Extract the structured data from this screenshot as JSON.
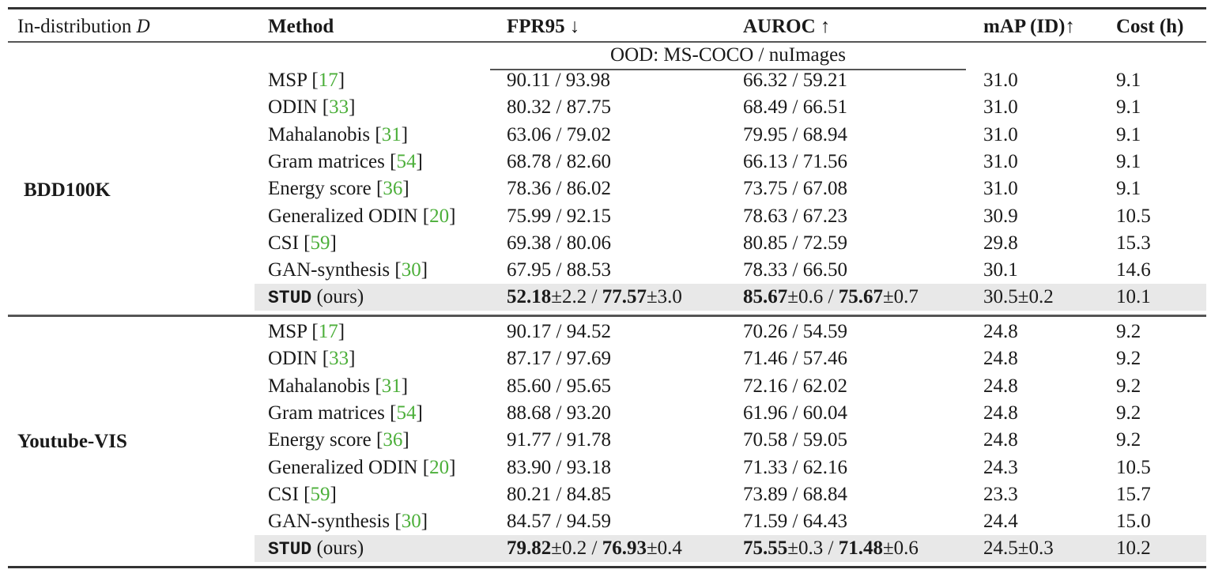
{
  "table": {
    "headers": {
      "dataset": "In-distribution",
      "dataset_symbol": "D",
      "method": "Method",
      "fpr95": "FPR95 ↓",
      "auroc": "AUROC ↑",
      "map": "mAP (ID)↑",
      "cost": "Cost (h)"
    },
    "subheader": "OOD: MS-COCO / nuImages",
    "groups": [
      {
        "dataset": "BDD100K",
        "rows": [
          {
            "method": "MSP",
            "ref": "17",
            "fpr95": "90.11 / 93.98",
            "auroc": "66.32 / 59.21",
            "map": "31.0",
            "cost": "9.1"
          },
          {
            "method": "ODIN",
            "ref": "33",
            "fpr95": "80.32 / 87.75",
            "auroc": "68.49 / 66.51",
            "map": "31.0",
            "cost": "9.1"
          },
          {
            "method": "Mahalanobis",
            "ref": "31",
            "fpr95": "63.06 / 79.02",
            "auroc": "79.95 / 68.94",
            "map": "31.0",
            "cost": "9.1"
          },
          {
            "method": "Gram matrices",
            "ref": "54",
            "fpr95": "68.78 / 82.60",
            "auroc": "66.13 / 71.56",
            "map": "31.0",
            "cost": "9.1"
          },
          {
            "method": "Energy score",
            "ref": "36",
            "fpr95": "78.36 / 86.02",
            "auroc": "73.75 / 67.08",
            "map": "31.0",
            "cost": "9.1"
          },
          {
            "method": "Generalized ODIN",
            "ref": "20",
            "fpr95": "75.99 / 92.15",
            "auroc": "78.63 / 67.23",
            "map": "30.9",
            "cost": "10.5"
          },
          {
            "method": "CSI",
            "ref": "59",
            "fpr95": "69.38 / 80.06",
            "auroc": "80.85 / 72.59",
            "map": "29.8",
            "cost": "15.3"
          },
          {
            "method": "GAN-synthesis",
            "ref": "30",
            "fpr95": "67.95 / 88.53",
            "auroc": "78.33 / 66.50",
            "map": "30.1",
            "cost": "14.6"
          }
        ],
        "ours": {
          "method": "STUD",
          "suffix": "(ours)",
          "fpr95_a": "52.18",
          "fpr95_a_std": "±2.2",
          "fpr95_b": "77.57",
          "fpr95_b_std": "±3.0",
          "auroc_a": "85.67",
          "auroc_a_std": "±0.6",
          "auroc_b": "75.67",
          "auroc_b_std": "±0.7",
          "map": "30.5±0.2",
          "cost": "10.1"
        }
      },
      {
        "dataset": "Youtube-VIS",
        "rows": [
          {
            "method": "MSP",
            "ref": "17",
            "fpr95": "90.17 / 94.52",
            "auroc": "70.26 / 54.59",
            "map": "24.8",
            "cost": "9.2"
          },
          {
            "method": "ODIN",
            "ref": "33",
            "fpr95": "87.17 / 97.69",
            "auroc": "71.46 / 57.46",
            "map": "24.8",
            "cost": "9.2"
          },
          {
            "method": "Mahalanobis",
            "ref": "31",
            "fpr95": "85.60 / 95.65",
            "auroc": "72.16 / 62.02",
            "map": "24.8",
            "cost": "9.2"
          },
          {
            "method": "Gram matrices",
            "ref": "54",
            "fpr95": "88.68 / 93.20",
            "auroc": "61.96 / 60.04",
            "map": "24.8",
            "cost": "9.2"
          },
          {
            "method": "Energy score",
            "ref": "36",
            "fpr95": "91.77 / 91.78",
            "auroc": "70.58 / 59.05",
            "map": "24.8",
            "cost": "9.2"
          },
          {
            "method": "Generalized ODIN",
            "ref": "20",
            "fpr95": "83.90 / 93.18",
            "auroc": "71.33 / 62.16",
            "map": "24.3",
            "cost": "10.5"
          },
          {
            "method": "CSI",
            "ref": "59",
            "fpr95": "80.21 / 84.85",
            "auroc": "73.89 / 68.84",
            "map": "23.3",
            "cost": "15.7"
          },
          {
            "method": "GAN-synthesis",
            "ref": "30",
            "fpr95": "84.57 / 94.59",
            "auroc": "71.59 / 64.43",
            "map": "24.4",
            "cost": "15.0"
          }
        ],
        "ours": {
          "method": "STUD",
          "suffix": "(ours)",
          "fpr95_a": "79.82",
          "fpr95_a_std": "±0.2",
          "fpr95_b": "76.93",
          "fpr95_b_std": "±0.4",
          "auroc_a": "75.55",
          "auroc_a_std": "±0.3",
          "auroc_b": "71.48",
          "auroc_b_std": "±0.6",
          "map": "24.5±0.3",
          "cost": "10.2"
        }
      }
    ],
    "colors": {
      "reference": "#4caf3a",
      "highlight_row": "#e8e8e8",
      "rule": "#333333"
    }
  }
}
